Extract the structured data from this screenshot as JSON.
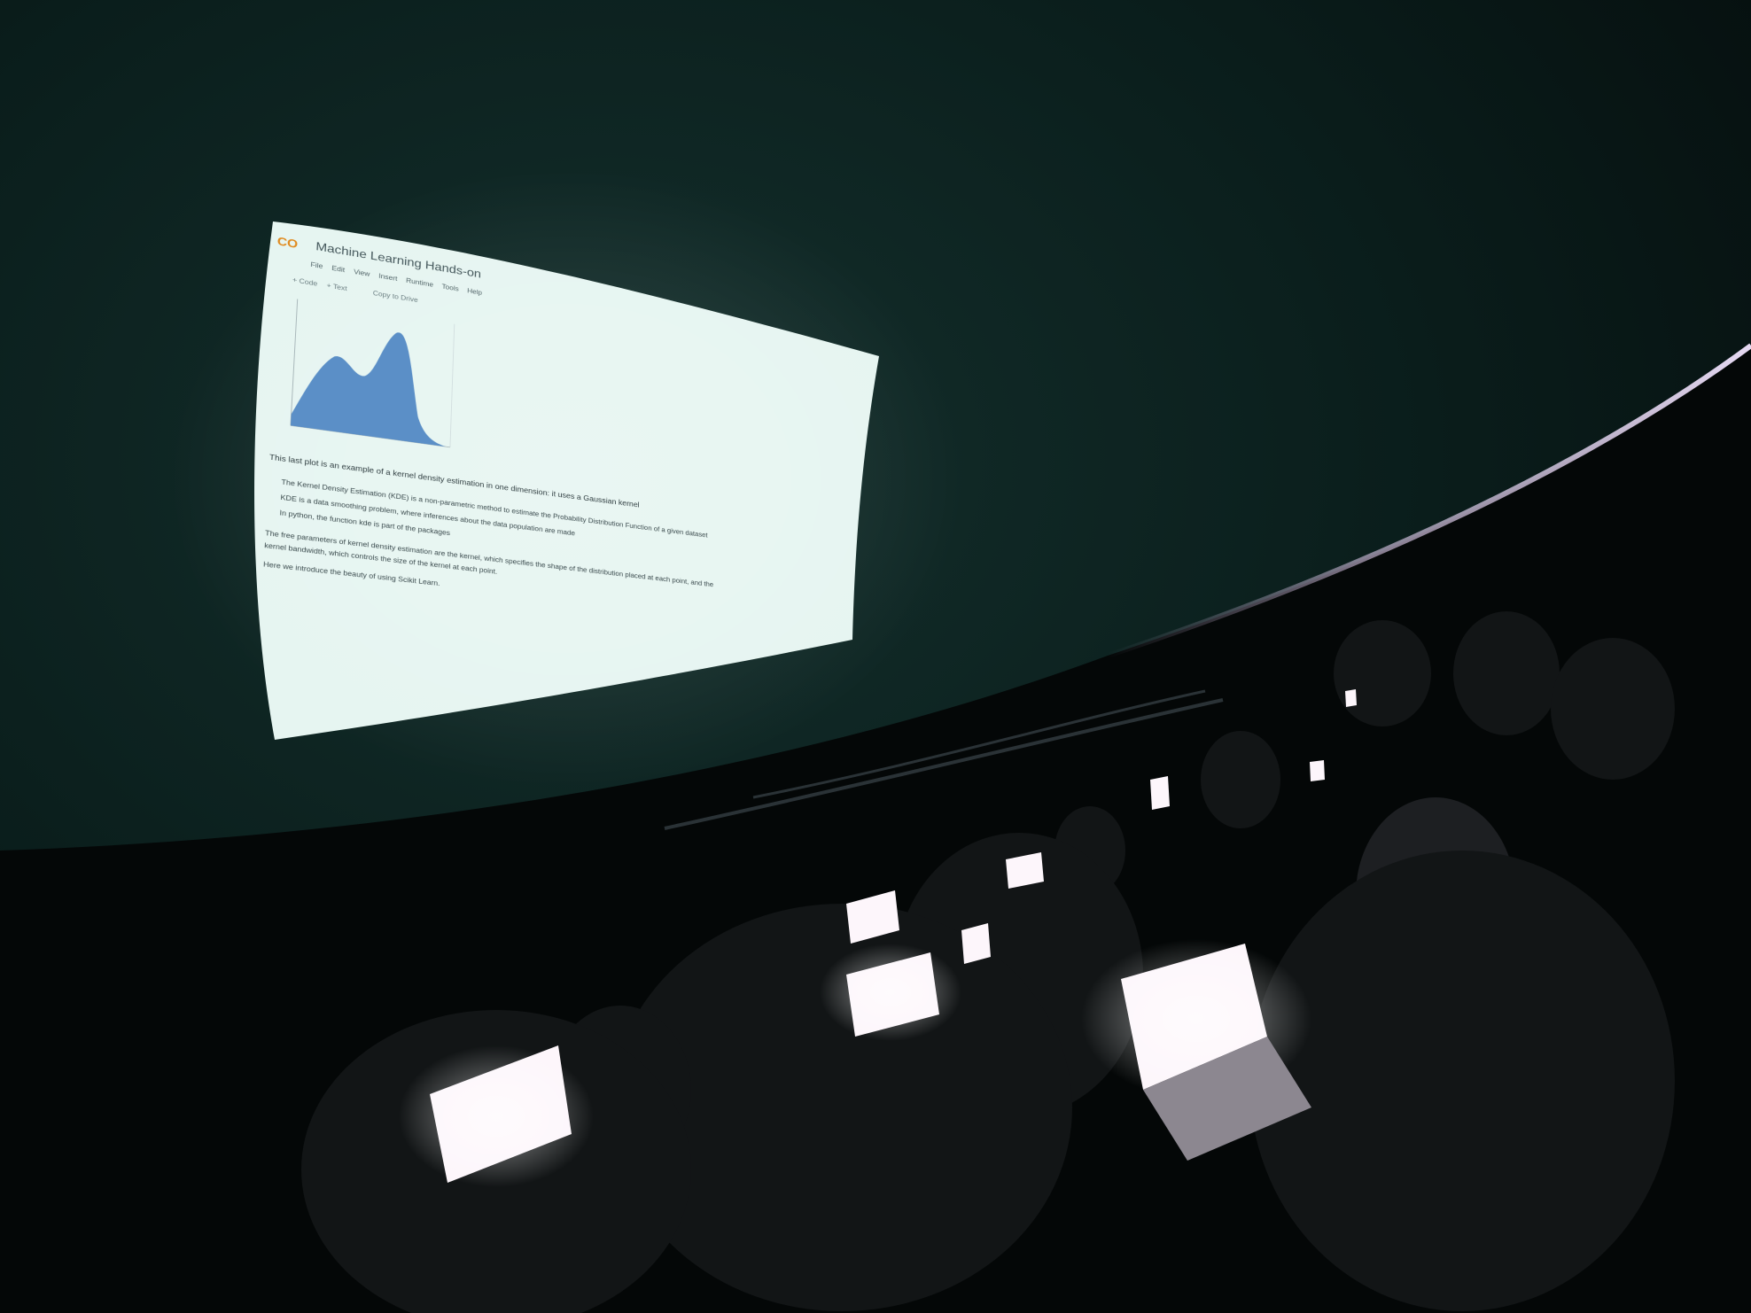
{
  "slide": {
    "logo": "CO",
    "notebook_title": "Machine Learning Hands-on",
    "menu": [
      "File",
      "Edit",
      "View",
      "Insert",
      "Runtime",
      "Tools",
      "Help"
    ],
    "toolbar_code": "+ Code",
    "toolbar_text": "+ Text",
    "toolbar_drive": "Copy to Drive",
    "caption": "This last plot is an example of a kernel density estimation in one dimension: it uses a Gaussian kernel",
    "bullets": [
      "The Kernel Density Estimation (KDE) is a non-parametric method to estimate the Probability Distribution Function of a given dataset",
      "KDE is a data smoothing problem, where inferences about the data population are made",
      "In python, the function kde is part of the packages"
    ],
    "para1": "The free parameters of kernel density estimation are the kernel, which specifies the shape of the distribution placed at each point, and the",
    "para2": "kernel bandwidth, which controls the size of the kernel at each point.",
    "para3": "Here we introduce the beauty of using Scikit Learn."
  },
  "colors": {
    "projection": "#e6f5f1",
    "kde_fill": "#5b8fc7",
    "dome": "#0b1c1b",
    "laptop_screen": "#fdf6fb"
  }
}
